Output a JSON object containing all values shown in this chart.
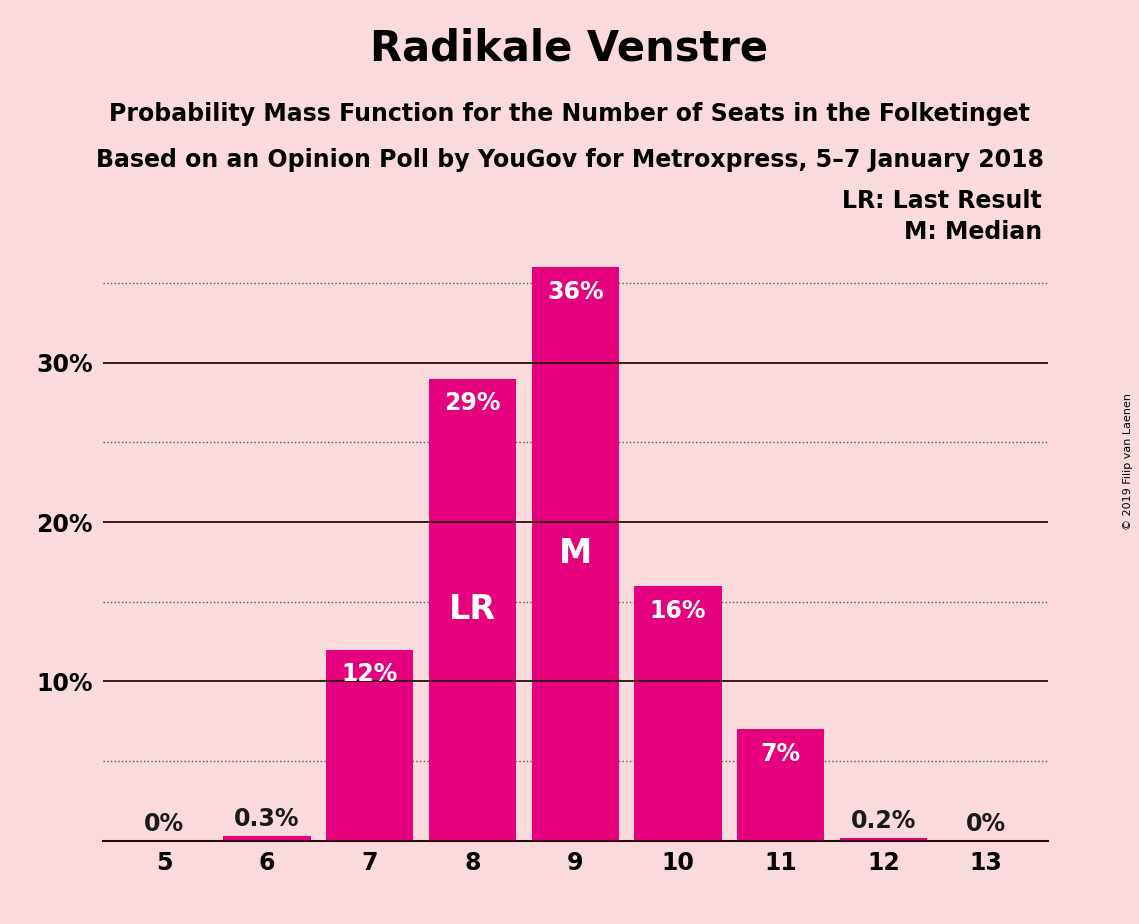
{
  "title": "Radikale Venstre",
  "subtitle1": "Probability Mass Function for the Number of Seats in the Folketinget",
  "subtitle2": "Based on an Opinion Poll by YouGov for Metroxpress, 5–7 January 2018",
  "categories": [
    5,
    6,
    7,
    8,
    9,
    10,
    11,
    12,
    13
  ],
  "values": [
    0.0,
    0.3,
    12.0,
    29.0,
    36.0,
    16.0,
    7.0,
    0.2,
    0.0
  ],
  "bar_color": "#E5007D",
  "background_color": "#FADADD",
  "solid_lines": [
    0,
    10,
    20,
    30
  ],
  "dotted_lines": [
    5,
    15,
    25,
    35
  ],
  "yticks": [
    10,
    20,
    30
  ],
  "ytick_labels": [
    "10%",
    "20%",
    "30%"
  ],
  "ylim": [
    0,
    40
  ],
  "last_result_seat": 8,
  "median_seat": 9,
  "lr_label": "LR",
  "m_label": "M",
  "legend_lr": "LR: Last Result",
  "legend_m": "M: Median",
  "copyright": "© 2019 Filip van Laenen",
  "bar_label_color_outside": "#1a1a1a",
  "bar_label_color_inside": "white",
  "title_fontsize": 30,
  "subtitle_fontsize": 17,
  "bar_label_fontsize": 17,
  "tick_fontsize": 17,
  "legend_fontsize": 17,
  "inner_label_fontsize": 24
}
